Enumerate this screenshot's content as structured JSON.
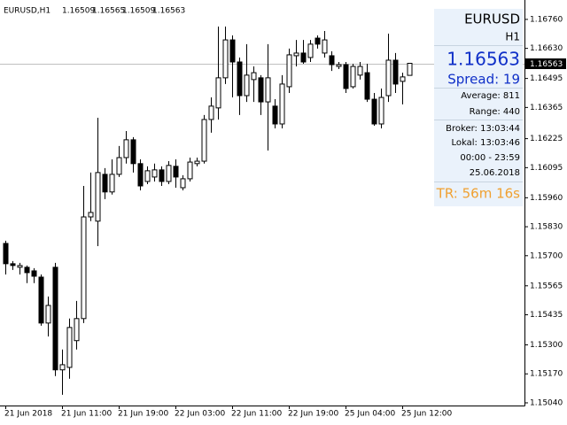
{
  "chart_data": {
    "type": "candlestick",
    "title": "EURUSD,H1",
    "categories": [
      "21 Jun 2018",
      null,
      null,
      null,
      null,
      null,
      null,
      null,
      "21 Jun 11:00",
      null,
      null,
      null,
      null,
      null,
      null,
      null,
      "21 Jun 19:00",
      null,
      null,
      null,
      null,
      null,
      null,
      null,
      "22 Jun 03:00",
      null,
      null,
      null,
      null,
      null,
      null,
      null,
      "22 Jun 11:00",
      null,
      null,
      null,
      null,
      null,
      null,
      null,
      "22 Jun 19:00",
      null,
      null,
      null,
      null,
      null,
      null,
      null,
      "25 Jun 04:00",
      null,
      null,
      null,
      null,
      null,
      null,
      null,
      "25 Jun 12:00",
      null
    ],
    "open": [
      1.15755,
      1.15664,
      1.15648,
      1.15648,
      1.15632,
      1.15604,
      1.15398,
      1.15648,
      1.15188,
      1.15199,
      1.15319,
      1.15418,
      1.15874,
      1.15855,
      1.16065,
      1.15986,
      1.16065,
      1.1614,
      1.1622,
      1.16113,
      1.16033,
      1.16053,
      1.16085,
      1.16033,
      1.16101,
      1.16005,
      1.16045,
      1.16113,
      1.16124,
      1.16311,
      1.16363,
      1.16498,
      1.16668,
      1.16569,
      1.16418,
      1.1649,
      1.16498,
      1.1639,
      1.16371,
      1.16291,
      1.16458,
      1.16597,
      1.16609,
      1.16589,
      1.16676,
      1.16609,
      1.16597,
      1.16549,
      1.16557,
      1.16458,
      1.1651,
      1.16521,
      1.16402,
      1.16291,
      1.16418,
      1.16577,
      1.16482,
      1.16509
    ],
    "high": [
      1.15767,
      1.15676,
      1.15668,
      1.15656,
      1.15644,
      1.15616,
      1.15517,
      1.15668,
      1.15279,
      1.15418,
      1.15497,
      1.16013,
      1.16073,
      1.16319,
      1.16093,
      1.16132,
      1.16192,
      1.16259,
      1.16232,
      1.16132,
      1.16101,
      1.16113,
      1.16101,
      1.16124,
      1.16132,
      1.16061,
      1.1614,
      1.1614,
      1.16331,
      1.1641,
      1.16728,
      1.16728,
      1.16688,
      1.16589,
      1.16649,
      1.16549,
      1.1651,
      1.16649,
      1.16402,
      1.1651,
      1.16629,
      1.16668,
      1.16668,
      1.16668,
      1.16688,
      1.16708,
      1.16617,
      1.16569,
      1.16569,
      1.16561,
      1.16569,
      1.16561,
      1.1643,
      1.1645,
      1.16696,
      1.16609,
      1.16521,
      1.16565
    ],
    "low": [
      1.15616,
      1.15636,
      1.15616,
      1.15577,
      1.15577,
      1.15386,
      1.15338,
      1.1516,
      1.15076,
      1.15148,
      1.15279,
      1.15398,
      1.15855,
      1.15743,
      1.15954,
      1.15974,
      1.16053,
      1.16113,
      1.16073,
      1.15993,
      1.16021,
      1.16033,
      1.16013,
      1.16021,
      1.16005,
      1.15993,
      1.16033,
      1.16101,
      1.16113,
      1.16252,
      1.16311,
      1.1647,
      1.1641,
      1.16331,
      1.1639,
      1.1639,
      1.16331,
      1.16172,
      1.16271,
      1.16271,
      1.1643,
      1.16549,
      1.16561,
      1.16569,
      1.16629,
      1.16589,
      1.16529,
      1.16537,
      1.1643,
      1.1645,
      1.1649,
      1.1639,
      1.16283,
      1.16271,
      1.1639,
      1.1643,
      1.16379,
      1.16509
    ],
    "close": [
      1.15664,
      1.15656,
      1.15656,
      1.15624,
      1.15608,
      1.15398,
      1.15477,
      1.15188,
      1.15211,
      1.15378,
      1.15418,
      1.15874,
      1.15894,
      1.16073,
      1.15986,
      1.16065,
      1.1614,
      1.1622,
      1.16113,
      1.16013,
      1.16081,
      1.16085,
      1.16033,
      1.16105,
      1.16053,
      1.16045,
      1.1612,
      1.16124,
      1.16311,
      1.16371,
      1.16498,
      1.16668,
      1.16569,
      1.16418,
      1.1651,
      1.16521,
      1.1639,
      1.16498,
      1.16291,
      1.1647,
      1.16601,
      1.16609,
      1.16569,
      1.16649,
      1.16649,
      1.16668,
      1.16557,
      1.16557,
      1.1645,
      1.16549,
      1.16549,
      1.16402,
      1.16291,
      1.1641,
      1.16577,
      1.1647,
      1.16502,
      1.16563
    ],
    "up_color": "#ffffff",
    "down_color": "#000000",
    "wick_color": "#000000",
    "price_line_color": "#c0c0c0",
    "ylim": [
      1.15028,
      1.16847
    ],
    "yticks": [
      {
        "value": 1.1676,
        "label": "1.16760"
      },
      {
        "value": 1.1663,
        "label": "1.16630"
      },
      {
        "value": 1.16495,
        "label": "1.16495"
      },
      {
        "value": 1.16365,
        "label": "1.16365"
      },
      {
        "value": 1.16225,
        "label": "1.16225"
      },
      {
        "value": 1.16095,
        "label": "1.16095"
      },
      {
        "value": 1.1596,
        "label": "1.15960"
      },
      {
        "value": 1.1583,
        "label": "1.15830"
      },
      {
        "value": 1.157,
        "label": "1.15700"
      },
      {
        "value": 1.15565,
        "label": "1.15565"
      },
      {
        "value": 1.15435,
        "label": "1.15435"
      },
      {
        "value": 1.153,
        "label": "1.15300"
      },
      {
        "value": 1.1517,
        "label": "1.15170"
      },
      {
        "value": 1.1504,
        "label": "1.15040"
      }
    ],
    "grid": false
  },
  "panel": {
    "symbol": "EURUSD",
    "timeframe": "H1",
    "spread": "Spread: 19",
    "average": "Average: 811",
    "range": "Range: 440",
    "broker": "Broker: 13:03:44",
    "lokal": "Lokal: 13:03:46",
    "session": "00:00 - 23:59",
    "date": "25.06.2018",
    "timer": "TR: 56m 16s"
  }
}
